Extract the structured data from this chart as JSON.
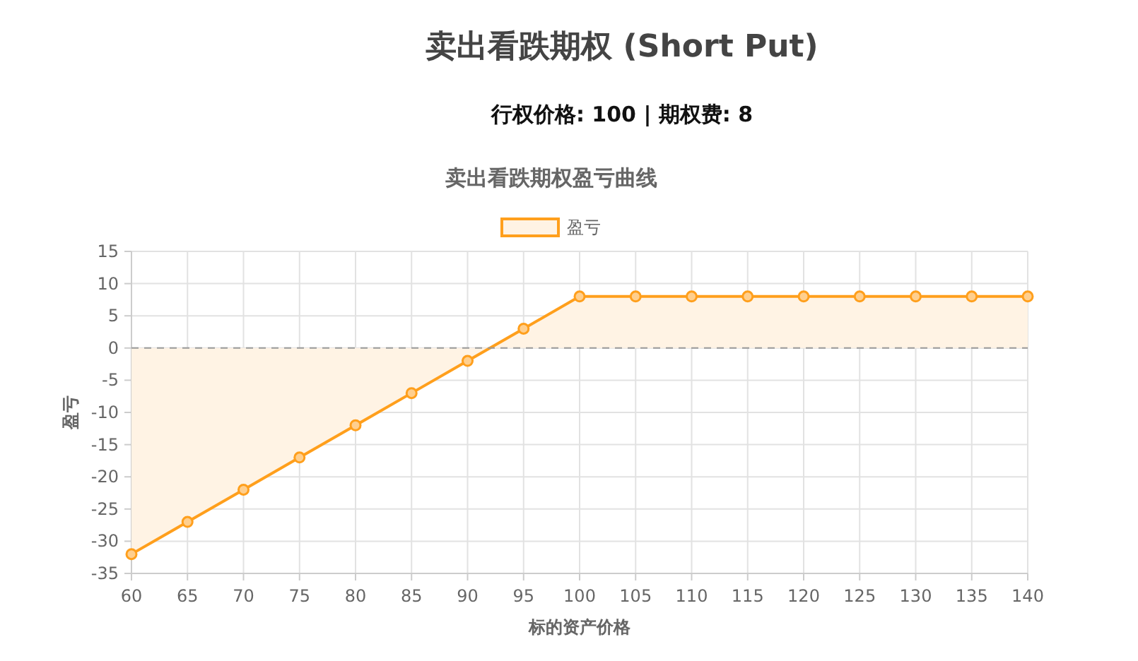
{
  "chart_data": {
    "type": "area",
    "title": "卖出看跌期权 (Short Put)",
    "subtitle": "行权价格: 100 | 期权费: 8",
    "annotations": [
      "卖出看跌期权盈亏曲线"
    ],
    "xlabel": "标的资产价格",
    "ylabel": "盈亏",
    "categories": [
      "60",
      "65",
      "70",
      "75",
      "80",
      "85",
      "90",
      "95",
      "100",
      "105",
      "110",
      "115",
      "120",
      "125",
      "130",
      "135",
      "140"
    ],
    "series": [
      {
        "name": "盈亏",
        "color": "#ff9f1c",
        "values": [
          -32,
          -27,
          -22,
          -17,
          -12,
          -7,
          -2,
          3,
          8,
          8,
          8,
          8,
          8,
          8,
          8,
          8,
          8
        ]
      }
    ],
    "ylim": [
      -35,
      15
    ],
    "yticks": [
      -35,
      -30,
      -25,
      -20,
      -15,
      -10,
      -5,
      0,
      5,
      10,
      15
    ],
    "ref_lines": [
      {
        "axis": "y",
        "value": 0,
        "color": "#999999",
        "line_style": "dashed"
      }
    ],
    "grid": true,
    "legend": "top",
    "marker": "circle",
    "line_style": "solid"
  }
}
